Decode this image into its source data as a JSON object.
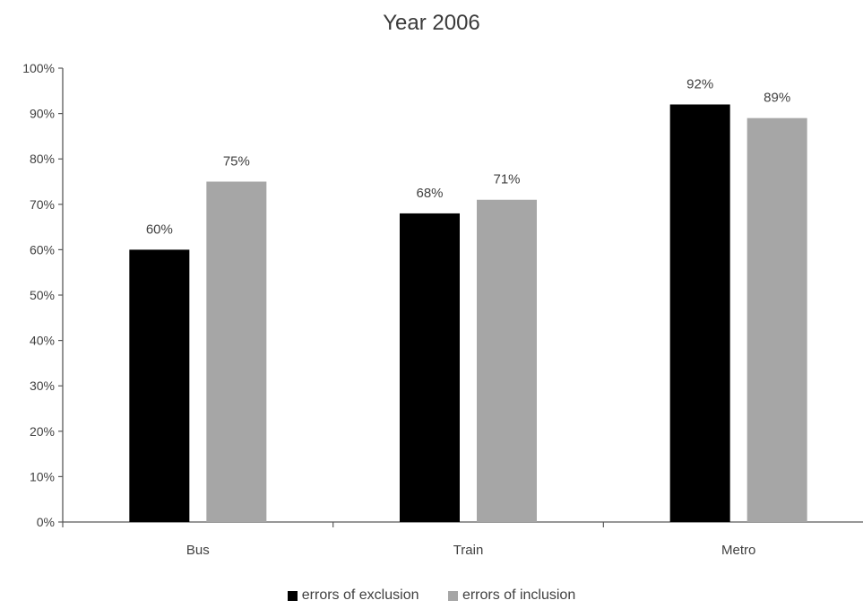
{
  "chart_data": {
    "type": "bar",
    "title": "Year 2006",
    "categories": [
      "Bus",
      "Train",
      "Metro"
    ],
    "series": [
      {
        "name": "errors of exclusion",
        "values": [
          60,
          68,
          92
        ],
        "color": "#000000"
      },
      {
        "name": "errors of inclusion",
        "values": [
          75,
          71,
          89
        ],
        "color": "#a6a6a6"
      }
    ],
    "data_labels": [
      [
        "60%",
        "68%",
        "92%"
      ],
      [
        "75%",
        "71%",
        "89%"
      ]
    ],
    "ylim": [
      0,
      100
    ],
    "yticks": [
      0,
      10,
      20,
      30,
      40,
      50,
      60,
      70,
      80,
      90,
      100
    ],
    "ytick_labels": [
      "0%",
      "10%",
      "20%",
      "30%",
      "40%",
      "50%",
      "60%",
      "70%",
      "80%",
      "90%",
      "100%"
    ],
    "xlabel": "",
    "ylabel": "",
    "grid": false,
    "legend_position": "bottom"
  }
}
